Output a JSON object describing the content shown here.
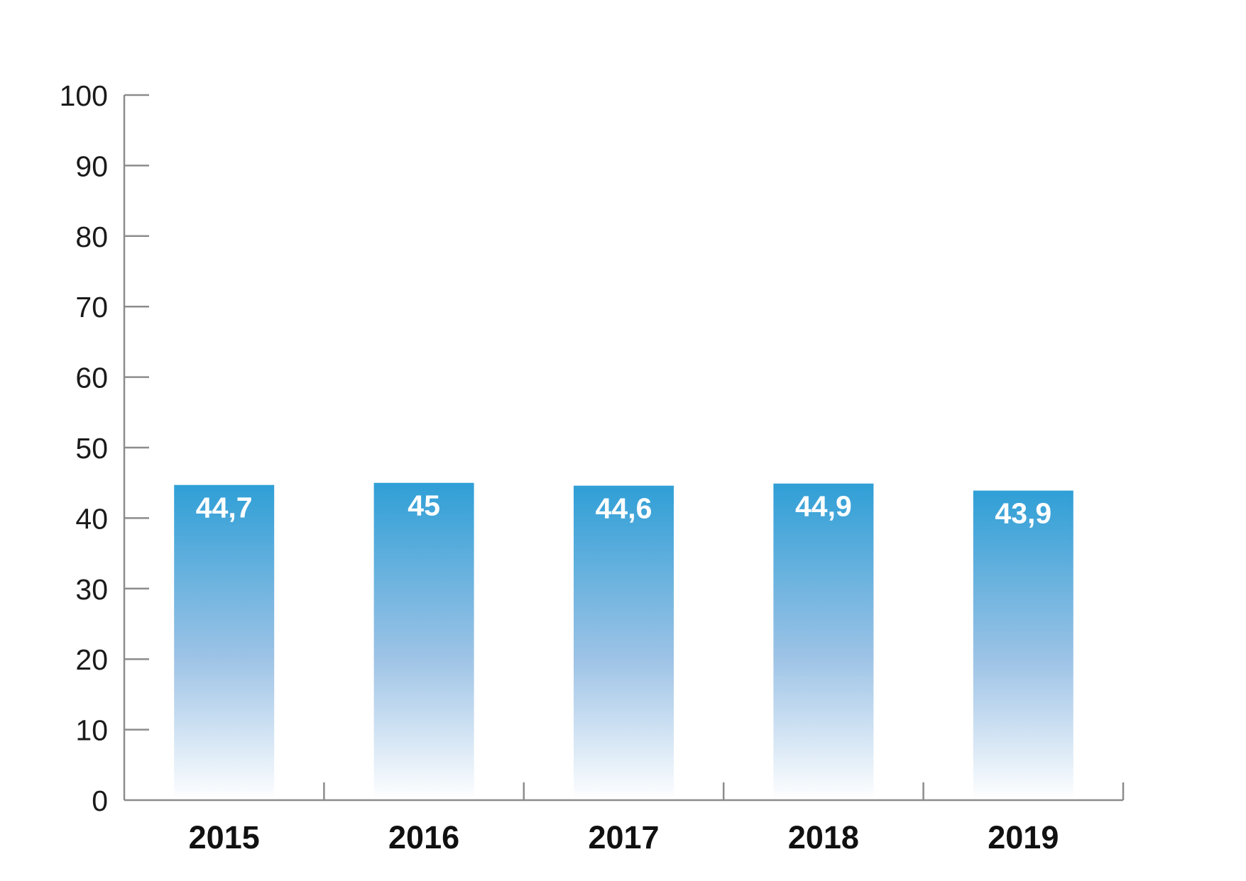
{
  "chart_data": {
    "type": "bar",
    "title": "",
    "xlabel": "",
    "ylabel": "",
    "categories": [
      "2015",
      "2016",
      "2017",
      "2018",
      "2019"
    ],
    "values": [
      44.7,
      45,
      44.6,
      44.9,
      43.9
    ],
    "value_labels": [
      "44,7",
      "45",
      "44,6",
      "44,9",
      "43,9"
    ],
    "ylim": [
      0,
      100
    ],
    "yticks": [
      0,
      10,
      20,
      30,
      40,
      50,
      60,
      70,
      80,
      90,
      100
    ],
    "ytick_labels": [
      "0",
      "10",
      "20",
      "30",
      "40",
      "50",
      "60",
      "70",
      "80",
      "90",
      "100"
    ],
    "grid": false,
    "legend": "none",
    "colors": {
      "bar_top": "#2f9fd6",
      "bar_bottom": "#ffffff",
      "axis": "#8c8c8c"
    }
  }
}
